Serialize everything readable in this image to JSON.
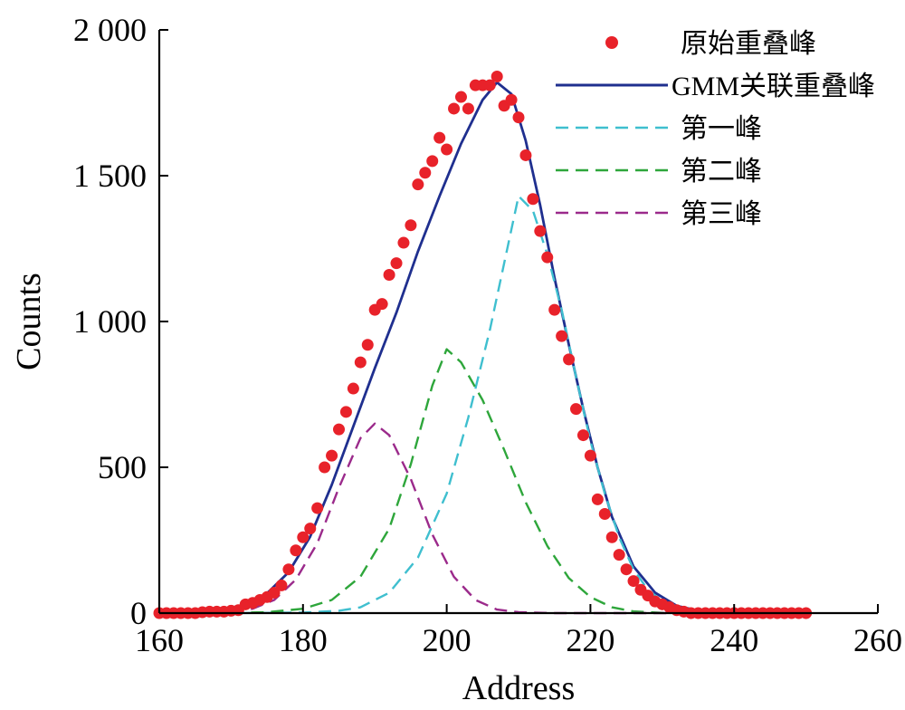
{
  "chart_data": {
    "type": "scatter",
    "title": "",
    "xlabel": "Address",
    "ylabel": "Counts",
    "xlim": [
      160,
      260
    ],
    "ylim": [
      0,
      2000
    ],
    "x_ticks": [
      160,
      180,
      200,
      220,
      240,
      260
    ],
    "y_ticks": [
      0,
      500,
      1000,
      1500,
      2000
    ],
    "x_tick_labels": [
      "160",
      "180",
      "200",
      "220",
      "240",
      "260"
    ],
    "y_tick_labels": [
      "0",
      "500",
      "1 000",
      "1 500",
      "2 000"
    ],
    "grid": false,
    "legend_position": "top-right",
    "series": [
      {
        "name": "原始重叠峰",
        "style": "markers",
        "color": "#e8222a",
        "x": [
          160,
          161,
          162,
          163,
          164,
          165,
          166,
          167,
          168,
          169,
          170,
          171,
          172,
          173,
          174,
          175,
          176,
          177,
          178,
          179,
          180,
          181,
          182,
          183,
          184,
          185,
          186,
          187,
          188,
          189,
          190,
          191,
          192,
          193,
          194,
          195,
          196,
          197,
          198,
          199,
          200,
          201,
          202,
          203,
          204,
          205,
          206,
          207,
          208,
          209,
          210,
          211,
          212,
          213,
          214,
          215,
          216,
          217,
          218,
          219,
          220,
          221,
          222,
          223,
          224,
          225,
          226,
          227,
          228,
          229,
          230,
          231,
          232,
          233,
          234,
          235,
          236,
          237,
          238,
          239,
          240,
          241,
          242,
          243,
          244,
          245,
          246,
          247,
          248,
          249,
          250
        ],
        "y": [
          0,
          0,
          0,
          0,
          0,
          0,
          3,
          5,
          5,
          5,
          8,
          10,
          30,
          35,
          45,
          55,
          70,
          95,
          150,
          215,
          260,
          290,
          360,
          500,
          540,
          630,
          690,
          770,
          860,
          920,
          1040,
          1060,
          1160,
          1200,
          1270,
          1330,
          1470,
          1510,
          1550,
          1630,
          1590,
          1730,
          1770,
          1730,
          1810,
          1810,
          1810,
          1840,
          1740,
          1760,
          1700,
          1570,
          1420,
          1310,
          1220,
          1040,
          950,
          870,
          700,
          610,
          540,
          390,
          340,
          260,
          200,
          150,
          110,
          80,
          60,
          40,
          30,
          20,
          10,
          5,
          0,
          0,
          0,
          0,
          0,
          0,
          0,
          0,
          0,
          0,
          0,
          0,
          0,
          0,
          0,
          0,
          0
        ]
      },
      {
        "name": "GMM关联重叠峰",
        "style": "solid",
        "color": "#1f2f8f",
        "x": [
          160,
          163,
          166,
          169,
          172,
          175,
          178,
          181,
          184,
          187,
          190,
          193,
          196,
          199,
          202,
          205,
          207,
          209,
          211,
          213,
          215,
          217,
          219,
          221,
          223,
          226,
          229,
          232,
          235,
          238,
          241,
          244,
          247,
          250
        ],
        "y": [
          0,
          1,
          4,
          12,
          30,
          68,
          140,
          262,
          440,
          640,
          840,
          1030,
          1240,
          1430,
          1610,
          1760,
          1820,
          1780,
          1620,
          1400,
          1150,
          920,
          700,
          500,
          330,
          160,
          70,
          25,
          8,
          2,
          0,
          0,
          0,
          0
        ]
      },
      {
        "name": "第一峰",
        "style": "dashed",
        "color": "#3fbfcf",
        "x": [
          160,
          170,
          180,
          185,
          188,
          192,
          196,
          200,
          203,
          206,
          208,
          210,
          212,
          214,
          216,
          218,
          220,
          222,
          224,
          226,
          228,
          230,
          234,
          238,
          242,
          250
        ],
        "y": [
          0,
          0,
          2,
          8,
          20,
          70,
          190,
          410,
          670,
          970,
          1200,
          1430,
          1380,
          1230,
          1040,
          810,
          590,
          410,
          260,
          150,
          80,
          40,
          8,
          1,
          0,
          0
        ]
      },
      {
        "name": "第二峰",
        "style": "dashed",
        "color": "#2ea63b",
        "x": [
          170,
          175,
          180,
          184,
          188,
          192,
          195,
          198,
          200,
          202,
          205,
          208,
          211,
          214,
          217,
          220,
          223,
          226,
          230,
          235,
          240,
          250
        ],
        "y": [
          1,
          3,
          15,
          45,
          125,
          290,
          510,
          780,
          905,
          860,
          730,
          560,
          380,
          230,
          120,
          55,
          20,
          6,
          1,
          0,
          0,
          0
        ]
      },
      {
        "name": "第三峰",
        "style": "dashed",
        "color": "#9b2a8b",
        "x": [
          170,
          173,
          176,
          179,
          182,
          185,
          188,
          190,
          192,
          195,
          198,
          201,
          204,
          207,
          210,
          215,
          220,
          230,
          240,
          250
        ],
        "y": [
          4,
          15,
          45,
          115,
          240,
          430,
          600,
          650,
          610,
          460,
          270,
          125,
          45,
          12,
          3,
          0,
          0,
          0,
          0,
          0
        ]
      }
    ]
  }
}
